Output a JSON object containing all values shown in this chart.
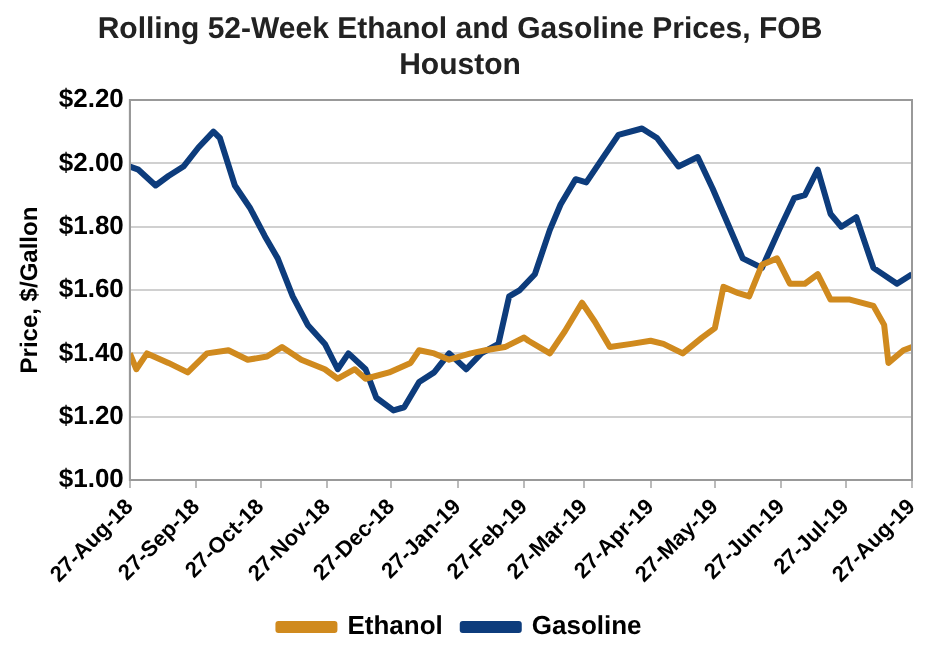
{
  "chart_data": {
    "type": "line",
    "title": "Rolling 52-Week Ethanol and Gasoline Prices, FOB Houston",
    "ylabel": "Price, $/Gallon",
    "xlim": [
      "2018-08-27",
      "2019-08-27"
    ],
    "xticks": [
      {
        "value": "2018-08-27",
        "label": "27-Aug-18"
      },
      {
        "value": "2018-09-27",
        "label": "27-Sep-18"
      },
      {
        "value": "2018-10-27",
        "label": "27-Oct-18"
      },
      {
        "value": "2018-11-27",
        "label": "27-Nov-18"
      },
      {
        "value": "2018-12-27",
        "label": "27-Dec-18"
      },
      {
        "value": "2019-01-27",
        "label": "27-Jan-19"
      },
      {
        "value": "2019-02-27",
        "label": "27-Feb-19"
      },
      {
        "value": "2019-03-27",
        "label": "27-Mar-19"
      },
      {
        "value": "2019-04-27",
        "label": "27-Apr-19"
      },
      {
        "value": "2019-05-27",
        "label": "27-May-19"
      },
      {
        "value": "2019-06-27",
        "label": "27-Jun-19"
      },
      {
        "value": "2019-07-27",
        "label": "27-Jul-19"
      },
      {
        "value": "2019-08-27",
        "label": "27-Aug-19"
      }
    ],
    "ylim": [
      1.0,
      2.2
    ],
    "yticks": [
      {
        "value": 1.0,
        "label": "$1.00"
      },
      {
        "value": 1.2,
        "label": "$1.20"
      },
      {
        "value": 1.4,
        "label": "$1.40"
      },
      {
        "value": 1.6,
        "label": "$1.60"
      },
      {
        "value": 1.8,
        "label": "$1.80"
      },
      {
        "value": 2.0,
        "label": "$2.00"
      },
      {
        "value": 2.2,
        "label": "$2.20"
      }
    ],
    "grid": "y",
    "legend": "bottom",
    "marker": "none",
    "line_style": "solid",
    "series": [
      {
        "name": "Ethanol",
        "color": "#d08a1e",
        "x": [
          "2018-08-27",
          "2018-08-30",
          "2018-09-04",
          "2018-09-14",
          "2018-09-23",
          "2018-10-02",
          "2018-10-12",
          "2018-10-21",
          "2018-10-30",
          "2018-11-06",
          "2018-11-15",
          "2018-11-26",
          "2018-12-02",
          "2018-12-10",
          "2018-12-15",
          "2018-12-26",
          "2019-01-05",
          "2019-01-09",
          "2019-01-16",
          "2019-01-23",
          "2019-02-02",
          "2019-02-09",
          "2019-02-18",
          "2019-02-27",
          "2019-03-01",
          "2019-03-11",
          "2019-03-18",
          "2019-03-26",
          "2019-04-01",
          "2019-04-08",
          "2019-04-18",
          "2019-04-27",
          "2019-05-03",
          "2019-05-12",
          "2019-05-21",
          "2019-05-27",
          "2019-05-31",
          "2019-06-07",
          "2019-06-12",
          "2019-06-18",
          "2019-06-25",
          "2019-07-01",
          "2019-07-08",
          "2019-07-14",
          "2019-07-20",
          "2019-07-29",
          "2019-08-09",
          "2019-08-14",
          "2019-08-16",
          "2019-08-23",
          "2019-08-27"
        ],
        "values": [
          1.4,
          1.35,
          1.4,
          1.37,
          1.34,
          1.4,
          1.41,
          1.38,
          1.39,
          1.42,
          1.38,
          1.35,
          1.32,
          1.35,
          1.32,
          1.34,
          1.37,
          1.41,
          1.4,
          1.38,
          1.4,
          1.41,
          1.42,
          1.45,
          1.44,
          1.4,
          1.47,
          1.56,
          1.5,
          1.42,
          1.43,
          1.44,
          1.43,
          1.4,
          1.45,
          1.48,
          1.61,
          1.59,
          1.58,
          1.68,
          1.7,
          1.62,
          1.62,
          1.65,
          1.57,
          1.57,
          1.55,
          1.49,
          1.37,
          1.41,
          1.42
        ]
      },
      {
        "name": "Gasoline",
        "color": "#0d3c7c",
        "x": [
          "2018-08-27",
          "2018-08-31",
          "2018-09-08",
          "2018-09-14",
          "2018-09-21",
          "2018-09-28",
          "2018-10-05",
          "2018-10-08",
          "2018-10-15",
          "2018-10-22",
          "2018-10-29",
          "2018-11-04",
          "2018-11-11",
          "2018-11-18",
          "2018-11-26",
          "2018-12-02",
          "2018-12-07",
          "2018-12-15",
          "2018-12-20",
          "2018-12-28",
          "2019-01-02",
          "2019-01-09",
          "2019-01-16",
          "2019-01-23",
          "2019-01-31",
          "2019-02-07",
          "2019-02-15",
          "2019-02-20",
          "2019-02-25",
          "2019-03-04",
          "2019-03-11",
          "2019-03-16",
          "2019-03-23",
          "2019-03-28",
          "2019-04-04",
          "2019-04-12",
          "2019-04-23",
          "2019-04-30",
          "2019-05-10",
          "2019-05-19",
          "2019-05-26",
          "2019-06-02",
          "2019-06-09",
          "2019-06-18",
          "2019-06-26",
          "2019-07-03",
          "2019-07-08",
          "2019-07-14",
          "2019-07-20",
          "2019-07-25",
          "2019-08-01",
          "2019-08-09",
          "2019-08-20",
          "2019-08-27"
        ],
        "values": [
          1.99,
          1.98,
          1.93,
          1.96,
          1.99,
          2.05,
          2.1,
          2.08,
          1.93,
          1.86,
          1.77,
          1.7,
          1.58,
          1.49,
          1.43,
          1.35,
          1.4,
          1.35,
          1.26,
          1.22,
          1.23,
          1.31,
          1.34,
          1.4,
          1.35,
          1.4,
          1.43,
          1.58,
          1.6,
          1.65,
          1.79,
          1.87,
          1.95,
          1.94,
          2.01,
          2.09,
          2.11,
          2.08,
          1.99,
          2.02,
          1.92,
          1.81,
          1.7,
          1.67,
          1.79,
          1.89,
          1.9,
          1.98,
          1.84,
          1.8,
          1.83,
          1.67,
          1.62,
          1.65
        ]
      }
    ]
  }
}
